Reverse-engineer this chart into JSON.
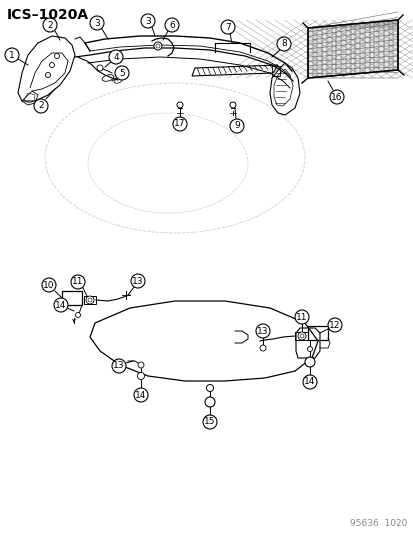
{
  "title": "ICS–1020A",
  "footer": "95636  1020",
  "bg_color": "#ffffff",
  "lc": "#000000",
  "gray": "#888888",
  "lgray": "#cccccc",
  "fig_width": 4.14,
  "fig_height": 5.33,
  "dpi": 100
}
